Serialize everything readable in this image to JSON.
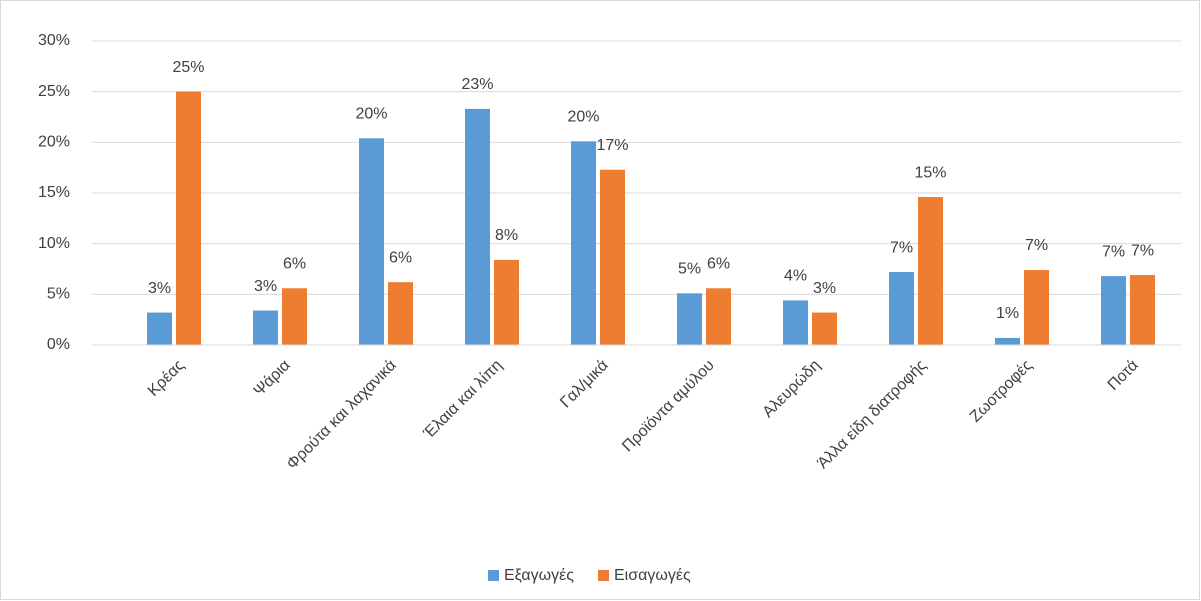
{
  "chart_data": {
    "type": "bar",
    "categories": [
      "Κρέας",
      "Ψάρια",
      "Φρούτα και λαχανικά",
      "Έλαια και λίπη",
      "Γαλ/μικά",
      "Προϊόντα αμύλου",
      "Αλευρώδη",
      "Άλλα είδη διατροφής",
      "Ζωοτροφές",
      "Ποτά"
    ],
    "series": [
      {
        "name": "Εξαγωγές",
        "color": "#5b9bd5",
        "values": [
          3.2,
          3.4,
          20.4,
          23.3,
          20.1,
          5.1,
          4.4,
          7.2,
          0.7,
          6.8
        ],
        "value_labels": [
          "3%",
          "3%",
          "20%",
          "23%",
          "20%",
          "5%",
          "4%",
          "7%",
          "1%",
          "7%"
        ]
      },
      {
        "name": "Εισαγωγές",
        "color": "#ed7d31",
        "values": [
          25,
          5.6,
          6.2,
          8.4,
          17.3,
          5.6,
          3.2,
          14.6,
          7.4,
          6.9
        ],
        "value_labels": [
          "25%",
          "6%",
          "6%",
          "8%",
          "17%",
          "6%",
          "3%",
          "15%",
          "7%",
          "7%"
        ]
      }
    ],
    "ylim": [
      0,
      30
    ],
    "yticks": [
      {
        "value": 0,
        "label": "0%"
      },
      {
        "value": 5,
        "label": "5%"
      },
      {
        "value": 10,
        "label": "10%"
      },
      {
        "value": 15,
        "label": "15%"
      },
      {
        "value": 20,
        "label": "20%"
      },
      {
        "value": 25,
        "label": "25%"
      },
      {
        "value": 30,
        "label": "30%"
      }
    ],
    "grid": true,
    "legend": "bottom"
  }
}
